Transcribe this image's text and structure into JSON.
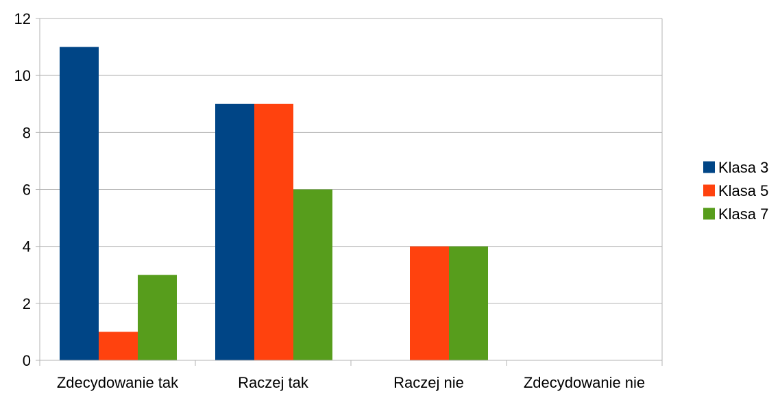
{
  "chart_data": {
    "type": "bar",
    "categories": [
      "Zdecydowanie tak",
      "Raczej tak",
      "Raczej nie",
      "Zdecydowanie nie"
    ],
    "series": [
      {
        "name": "Klasa 3",
        "values": [
          11,
          9,
          0,
          0
        ],
        "color": "#004586"
      },
      {
        "name": "Klasa 5",
        "values": [
          1,
          9,
          4,
          0
        ],
        "color": "#ff420e"
      },
      {
        "name": "Klasa 7",
        "values": [
          3,
          6,
          4,
          0
        ],
        "color": "#579d1c"
      }
    ],
    "ylim": [
      0,
      12
    ],
    "yticks": [
      0,
      2,
      4,
      6,
      8,
      10,
      12
    ],
    "grid": true,
    "legend": "right",
    "title": "",
    "xlabel": "",
    "ylabel": ""
  }
}
